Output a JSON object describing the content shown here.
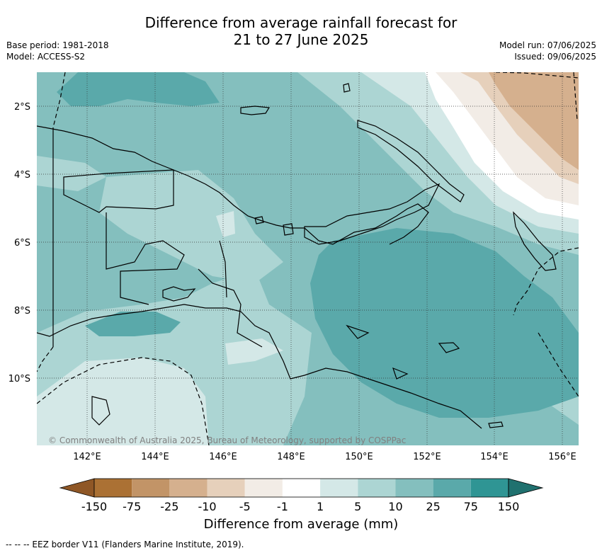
{
  "title_line1": "Difference from average rainfall forecast for",
  "title_line2": "21 to 27 June 2025",
  "meta": {
    "base_period": "Base period: 1981-2018",
    "model": "Model: ACCESS-S2",
    "model_run": "Model run: 07/06/2025",
    "issued": "Issued: 09/06/2025"
  },
  "map": {
    "lon_ticks": [
      "142°E",
      "144°E",
      "146°E",
      "148°E",
      "150°E",
      "152°E",
      "154°E",
      "156°E"
    ],
    "lat_ticks": [
      "2°S",
      "4°S",
      "6°S",
      "8°S",
      "10°S"
    ],
    "credit": "© Commonwealth of Australia 2025, Bureau of Meteorology, supported by COSPPac"
  },
  "colorbar": {
    "ticks": [
      "-150",
      "-75",
      "-25",
      "-10",
      "-5",
      "-1",
      "1",
      "5",
      "10",
      "25",
      "75",
      "150"
    ],
    "colors": [
      "#ab7134",
      "#c29467",
      "#d5b08e",
      "#e6d0bb",
      "#f2ece6",
      "#ffffff",
      "#d4e8e7",
      "#acd5d3",
      "#84bfbe",
      "#5aa9aa",
      "#2f9594"
    ],
    "under_color": "#8f5726",
    "over_color": "#20716f",
    "label": "Difference from average (mm)"
  },
  "legend": {
    "eez": "--  --  -- EEZ border V11 (Flanders Marine Institute, 2019)."
  },
  "colors": {
    "c10": "#84bfbe",
    "c25": "#5aa9aa",
    "c5": "#acd5d3",
    "c1": "#d4e8e7",
    "n1": "#f2ece6",
    "n5": "#e6d0bb",
    "n10": "#d5b08e"
  }
}
